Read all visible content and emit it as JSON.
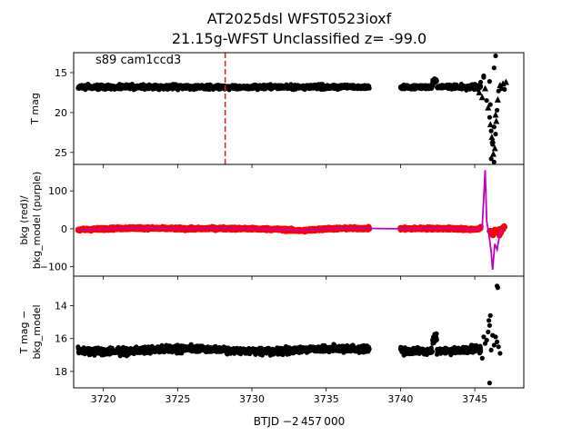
{
  "chart_data": {
    "type": "scatter",
    "title_line1": "AT2025dsl  WFST0523ioxf",
    "title_line2": "21.15g-WFST Unclassified z= -99.0",
    "xlabel": "BTJD −2 457 000",
    "xlim": [
      3718.0,
      3748.3
    ],
    "xticks": [
      3720,
      3725,
      3730,
      3735,
      3740,
      3745
    ],
    "xticklabels": [
      "3720",
      "3725",
      "3730",
      "3735",
      "3740",
      "3745"
    ],
    "colors": {
      "data": "#000000",
      "bkg": "#ff0000",
      "model": "#bf00bf",
      "marker_line": "#d62728"
    },
    "panels": [
      {
        "id": "tmag",
        "ylabel": [
          "T mag"
        ],
        "annotation": "s89 cam1ccd3",
        "ylim": [
          26.5,
          12.5
        ],
        "yticks": [
          15,
          20,
          25
        ],
        "yticklabels": [
          "15",
          "20",
          "25"
        ],
        "vline_x": 3728.2,
        "segments": [
          {
            "x_start": 3718.3,
            "x_end": 3737.9,
            "level": 16.8,
            "spread": 0.55
          },
          {
            "x_start": 3740.0,
            "x_end": 3745.4,
            "level": 16.8,
            "spread": 0.55
          }
        ],
        "bump": {
          "x": 3742.3,
          "value": 16.0
        },
        "tail_points": [
          [
            3745.3,
            17.5
          ],
          [
            3745.4,
            16.2
          ],
          [
            3745.5,
            18.1
          ],
          [
            3745.6,
            15.4
          ],
          [
            3745.7,
            17.0
          ],
          [
            3745.8,
            18.5
          ],
          [
            3745.9,
            19.4
          ],
          [
            3746.0,
            20.6
          ],
          [
            3746.05,
            21.5
          ],
          [
            3746.1,
            22.3
          ],
          [
            3746.15,
            23.1
          ],
          [
            3746.2,
            24.0
          ],
          [
            3746.25,
            25.2
          ],
          [
            3746.3,
            26.2
          ],
          [
            3746.35,
            24.5
          ],
          [
            3746.4,
            22.7
          ],
          [
            3746.45,
            21.1
          ],
          [
            3746.5,
            19.7
          ],
          [
            3746.55,
            18.4
          ],
          [
            3746.6,
            17.3
          ],
          [
            3746.7,
            16.6
          ],
          [
            3746.8,
            17.0
          ],
          [
            3746.9,
            16.4
          ],
          [
            3747.0,
            17.1
          ],
          [
            3747.1,
            16.2
          ],
          [
            3746.1,
            25.8
          ],
          [
            3746.2,
            23.5
          ],
          [
            3746.3,
            21.8
          ],
          [
            3746.4,
            20.3
          ],
          [
            3746.05,
            19.0
          ]
        ],
        "outliers": [
          [
            3746.4,
            12.9
          ],
          [
            3746.3,
            14.4
          ],
          [
            3745.6,
            15.6
          ],
          [
            3746.0,
            16.1
          ]
        ]
      },
      {
        "id": "bkg",
        "ylabel": [
          "bkg (red)/",
          "bkg_model (purple)"
        ],
        "ylim": [
          -125,
          170
        ],
        "yticks": [
          -100,
          0,
          100
        ],
        "yticklabels": [
          "−100",
          "0",
          "100"
        ],
        "bkg_segments": [
          {
            "x_start": 3718.3,
            "x_end": 3737.9
          },
          {
            "x_start": 3740.0,
            "x_end": 3745.4
          },
          {
            "x_start": 3746.0,
            "x_end": 3747.0
          }
        ],
        "model_curve": [
          [
            3718.3,
            -3
          ],
          [
            3720,
            0
          ],
          [
            3722,
            2
          ],
          [
            3724,
            1
          ],
          [
            3726,
            0
          ],
          [
            3728,
            1
          ],
          [
            3730,
            0
          ],
          [
            3731.5,
            -1
          ],
          [
            3732.5,
            -3
          ],
          [
            3733.3,
            -5
          ],
          [
            3734,
            -3
          ],
          [
            3735,
            0
          ],
          [
            3736.5,
            1
          ],
          [
            3737.9,
            1
          ],
          [
            3740.0,
            0
          ],
          [
            3742,
            1
          ],
          [
            3744,
            0
          ],
          [
            3745.2,
            -2
          ],
          [
            3745.5,
            5
          ],
          [
            3745.7,
            155
          ],
          [
            3745.8,
            20
          ],
          [
            3745.95,
            -15
          ],
          [
            3746.1,
            -60
          ],
          [
            3746.2,
            -108
          ],
          [
            3746.35,
            -40
          ],
          [
            3746.5,
            -55
          ],
          [
            3746.7,
            -10
          ],
          [
            3746.9,
            2
          ],
          [
            3747.0,
            5
          ]
        ]
      },
      {
        "id": "diff",
        "ylabel": [
          "T mag −",
          "bkg_model"
        ],
        "ylim": [
          19.0,
          12.2
        ],
        "yticks": [
          14,
          16,
          18
        ],
        "yticklabels": [
          "14",
          "16",
          "18"
        ],
        "segments": [
          {
            "x_start": 3718.3,
            "x_end": 3737.9,
            "level": 16.7,
            "spread": 0.4
          },
          {
            "x_start": 3740.0,
            "x_end": 3745.4,
            "level": 16.7,
            "spread": 0.4
          }
        ],
        "bump": {
          "x": 3742.3,
          "value": 16.0
        },
        "tail_points": [
          [
            3745.4,
            16.8
          ],
          [
            3745.6,
            15.9
          ],
          [
            3745.7,
            16.3
          ],
          [
            3745.8,
            16.1
          ],
          [
            3745.9,
            15.6
          ],
          [
            3746.0,
            15.2
          ],
          [
            3746.1,
            16.7
          ],
          [
            3746.2,
            15.8
          ],
          [
            3746.3,
            16.4
          ],
          [
            3746.4,
            15.9
          ],
          [
            3746.5,
            16.2
          ],
          [
            3746.6,
            16.5
          ],
          [
            3746.7,
            16.9
          ],
          [
            3745.5,
            17.2
          ],
          [
            3746.05,
            14.6
          ],
          [
            3745.95,
            14.9
          ]
        ],
        "outliers": [
          [
            3746.5,
            12.8
          ],
          [
            3746.55,
            12.9
          ],
          [
            3746.0,
            18.7
          ]
        ]
      }
    ]
  }
}
